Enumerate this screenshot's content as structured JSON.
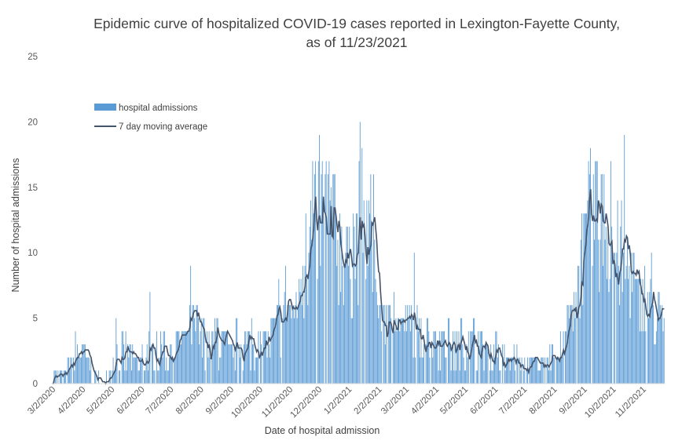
{
  "chart_data": {
    "type": "bar",
    "title_line1": "Epidemic curve of hospitalized COVID-19 cases reported in Lexington-Fayette County,",
    "title_line2": "as of 11/23/2021",
    "xlabel": "Date of hospital admission",
    "ylabel": "Number of hospital admissions",
    "ylim": [
      0,
      25
    ],
    "yticks": [
      "0",
      "5",
      "10",
      "15",
      "20",
      "25"
    ],
    "x_start_date": "2020-03-01",
    "x_end_date": "2021-11-23",
    "xtick_labels": [
      "3/2/2020",
      "4/2/2020",
      "5/2/2020",
      "6/2/2020",
      "7/2/2020",
      "8/2/2020",
      "9/2/2020",
      "10/2/2020",
      "11/2/2020",
      "12/2/2020",
      "1/2/2021",
      "2/2/2021",
      "3/2/2021",
      "4/2/2021",
      "5/2/2021",
      "6/2/2021",
      "7/2/2021",
      "8/2/2021",
      "9/2/2021",
      "10/2/2021",
      "11/2/2021"
    ],
    "grid": false,
    "legend_position": "upper-left",
    "series": [
      {
        "name": "hospital admissions",
        "type": "bar",
        "color": "#5B9BD5",
        "weekly_peak_values": [
          1,
          1,
          2,
          4,
          3,
          2,
          1,
          0,
          1,
          5,
          4,
          3,
          2,
          3,
          7,
          4,
          4,
          3,
          4,
          4,
          9,
          6,
          5,
          4,
          5,
          4,
          3,
          5,
          4,
          5,
          4,
          4,
          5,
          8,
          9,
          6,
          8,
          13,
          17,
          19,
          17,
          16,
          13,
          12,
          13,
          20,
          14,
          16,
          6,
          6,
          7,
          5,
          6,
          10,
          5,
          5,
          4,
          4,
          5,
          4,
          5,
          4,
          5,
          4,
          3,
          4,
          3,
          2,
          3,
          2,
          2,
          2,
          2,
          3,
          2,
          4,
          6,
          9,
          13,
          18,
          17,
          16,
          17,
          14,
          19,
          10,
          8,
          9,
          10,
          7,
          6,
          5,
          5,
          4,
          5,
          5,
          4
        ],
        "weekly_mean_values": [
          0.1,
          0.1,
          0.5,
          1.2,
          2.3,
          2.0,
          0.8,
          0.2,
          0.4,
          1.8,
          2.3,
          2.0,
          1.5,
          1.3,
          2.3,
          2.1,
          2.5,
          2.2,
          2.6,
          3.0,
          4.3,
          4.0,
          3.0,
          2.8,
          3.5,
          3.2,
          3.8,
          3.0,
          2.9,
          2.7,
          2.8,
          3.2,
          3.3,
          4.0,
          4.5,
          5.5,
          6.5,
          8.6,
          10.2,
          11.7,
          12.2,
          12.4,
          11.7,
          9.8,
          8.8,
          11.1,
          11.9,
          10.6,
          7.0,
          6.2,
          6.4,
          5.6,
          5.0,
          4.2,
          3.7,
          3.6,
          3.5,
          3.2,
          2.7,
          2.4,
          2.6,
          2.9,
          3.2,
          3.0,
          2.4,
          2.2,
          2.0,
          1.9,
          1.7,
          1.5,
          1.4,
          1.3,
          1.5,
          1.8,
          2.4,
          3.6,
          5.5,
          7.4,
          9.4,
          11.0,
          12.1,
          12.3,
          11.3,
          10.4,
          9.0,
          8.3,
          8.2,
          7.4,
          6.2,
          4.9,
          4.0,
          3.9,
          4.0,
          3.7,
          3.8,
          3.5,
          3.6
        ]
      },
      {
        "name": "7 day moving average",
        "type": "line",
        "color": "#44546A"
      }
    ]
  }
}
